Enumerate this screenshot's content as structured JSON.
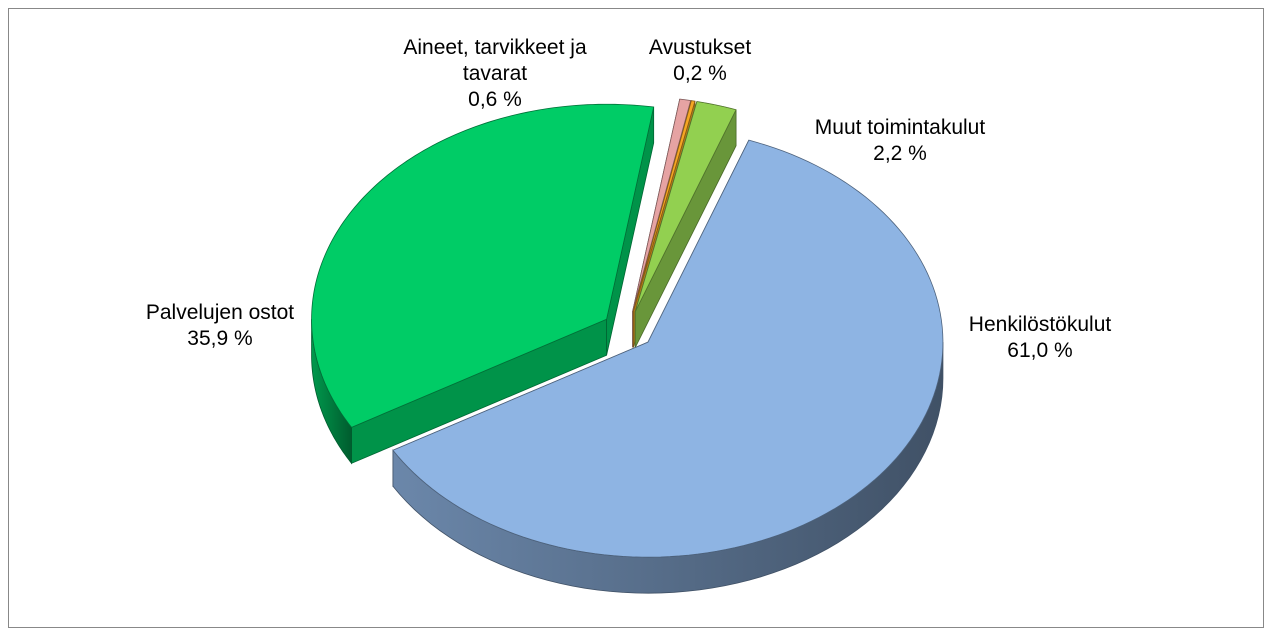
{
  "chart_data": {
    "type": "pie3d",
    "categories": [
      "Henkilöstökulut",
      "Palvelujen ostot",
      "Aineet, tarvikkeet ja tavarat",
      "Avustukset",
      "Muut toimintakulut"
    ],
    "values": [
      61.0,
      35.9,
      0.6,
      0.2,
      2.2
    ],
    "value_labels": [
      "61,0 %",
      "35,9 %",
      "0,6 %",
      "0,2 %",
      "2,2 %"
    ],
    "colors": [
      "#8eb4e3",
      "#00cc66",
      "#e6a3a3",
      "#f5a623",
      "#92d050"
    ]
  }
}
